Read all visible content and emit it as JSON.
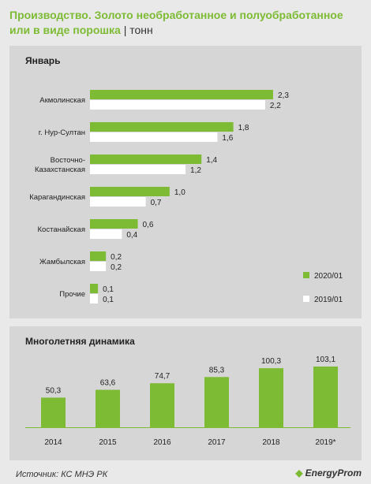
{
  "header": {
    "title": "Производство. Золото необработанное и полуобработанное или в виде порошка",
    "unit": "| тонн"
  },
  "footer": {
    "source": "Источник: КС МНЭ РК",
    "logo": "EnergyProm"
  },
  "colors": {
    "green": "#7dbb34",
    "white": "#ffffff",
    "text": "#222222",
    "panel": "#d6d6d6",
    "background": "#e9e9e9"
  },
  "chart_data": [
    {
      "type": "bar",
      "orientation": "horizontal",
      "title": "Январь",
      "categories": [
        "Акмолинская",
        "г. Нур-Султан",
        "Восточно-Казахстанская",
        "Карагандинская",
        "Костанайская",
        "Жамбылская",
        "Прочие"
      ],
      "category_lines": [
        [
          "Акмолинская"
        ],
        [
          "г. Нур-Султан"
        ],
        [
          "Восточно-",
          "Казахстанская"
        ],
        [
          "Карагандинская"
        ],
        [
          "Костанайская"
        ],
        [
          "Жамбылская"
        ],
        [
          "Прочие"
        ]
      ],
      "series": [
        {
          "name": "2020/01",
          "color": "#7dbb34",
          "values": [
            2.3,
            1.8,
            1.4,
            1.0,
            0.6,
            0.2,
            0.1
          ],
          "labels": [
            "2,3",
            "1,8",
            "1,4",
            "1,0",
            "0,6",
            "0,2",
            "0,1"
          ]
        },
        {
          "name": "2019/01",
          "color": "#ffffff",
          "values": [
            2.2,
            1.6,
            1.2,
            0.7,
            0.4,
            0.2,
            0.1
          ],
          "labels": [
            "2,2",
            "1,6",
            "1,2",
            "0,7",
            "0,4",
            "0,2",
            "0,1"
          ]
        }
      ],
      "xlim": [
        0,
        2.3
      ],
      "legend": "bottom-right",
      "grid": false
    },
    {
      "type": "bar",
      "title": "Многолетняя динамика",
      "categories": [
        "2014",
        "2015",
        "2016",
        "2017",
        "2018",
        "2019*"
      ],
      "values": [
        50.3,
        63.6,
        74.7,
        85.3,
        100.3,
        103.1
      ],
      "labels": [
        "50,3",
        "63,6",
        "74,7",
        "85,3",
        "100,3",
        "103,1"
      ],
      "color": "#7dbb34",
      "ylim": [
        0,
        103.1
      ],
      "grid": false
    }
  ]
}
